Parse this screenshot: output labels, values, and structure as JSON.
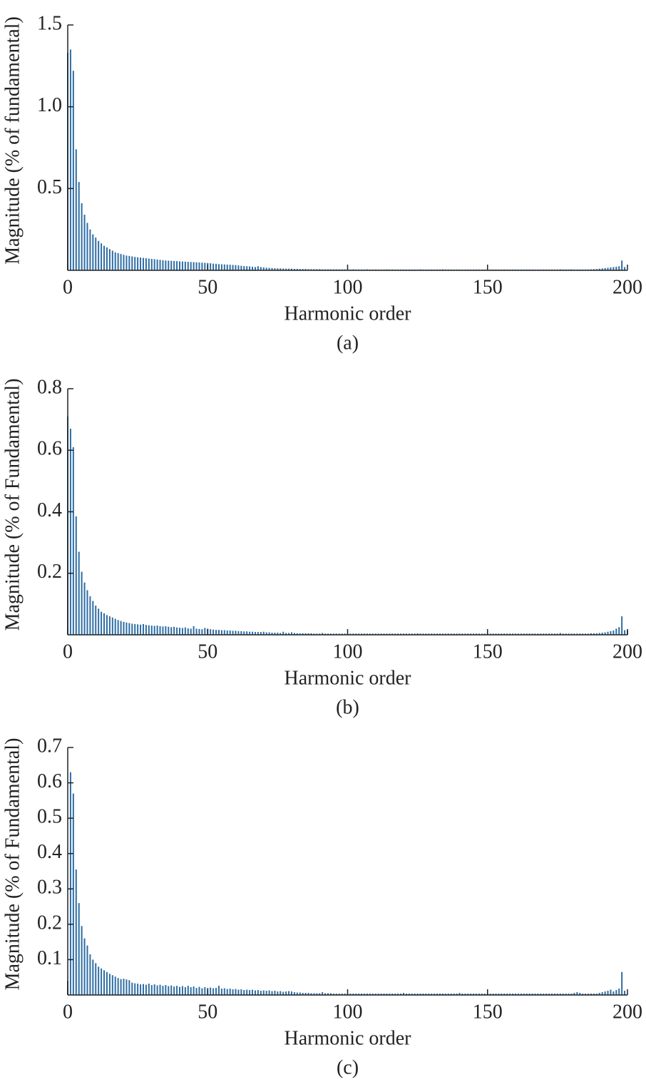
{
  "chart_data": [
    {
      "type": "bar",
      "caption": "(a)",
      "xlabel": "Harmonic order",
      "ylabel": "Magnitude (% of fundamental)",
      "color": "#2e6da4",
      "xlim": [
        0,
        200
      ],
      "xticks": [
        0,
        50,
        100,
        150,
        200
      ],
      "ylim": [
        0,
        1.5
      ],
      "yticks": [
        0.5,
        {
          "value": 1,
          "label": "1.0"
        },
        1.5
      ],
      "x": [
        0,
        1,
        2,
        3,
        4,
        5,
        6,
        7,
        8,
        9,
        10,
        11,
        12,
        13,
        14,
        15,
        16,
        17,
        18,
        19,
        20,
        21,
        22,
        23,
        24,
        25,
        26,
        27,
        28,
        29,
        30,
        31,
        32,
        33,
        34,
        35,
        36,
        37,
        38,
        39,
        40,
        41,
        42,
        43,
        44,
        45,
        46,
        47,
        48,
        49,
        50,
        51,
        52,
        53,
        54,
        55,
        56,
        57,
        58,
        59,
        60,
        61,
        62,
        63,
        64,
        65,
        66,
        67,
        68,
        69,
        70,
        71,
        72,
        73,
        74,
        75,
        76,
        77,
        78,
        79,
        80,
        81,
        82,
        83,
        84,
        85,
        86,
        87,
        88,
        89,
        90,
        91,
        92,
        93,
        94,
        95,
        96,
        97,
        98,
        99,
        100,
        101,
        102,
        103,
        104,
        105,
        106,
        107,
        108,
        109,
        110,
        111,
        112,
        113,
        114,
        115,
        116,
        117,
        118,
        119,
        120,
        121,
        122,
        123,
        124,
        125,
        126,
        127,
        128,
        129,
        130,
        131,
        132,
        133,
        134,
        135,
        136,
        137,
        138,
        139,
        140,
        141,
        142,
        143,
        144,
        145,
        146,
        147,
        148,
        149,
        150,
        151,
        152,
        153,
        154,
        155,
        156,
        157,
        158,
        159,
        160,
        161,
        162,
        163,
        164,
        165,
        166,
        167,
        168,
        169,
        170,
        171,
        172,
        173,
        174,
        175,
        176,
        177,
        178,
        179,
        180,
        181,
        182,
        183,
        184,
        185,
        186,
        187,
        188,
        189,
        190,
        191,
        192,
        193,
        194,
        195,
        196,
        197,
        198,
        199,
        200
      ],
      "values": [
        1.33,
        1.35,
        1.22,
        0.74,
        0.54,
        0.41,
        0.34,
        0.29,
        0.25,
        0.22,
        0.2,
        0.18,
        0.165,
        0.15,
        0.14,
        0.13,
        0.12,
        0.11,
        0.105,
        0.1,
        0.095,
        0.09,
        0.088,
        0.085,
        0.082,
        0.08,
        0.078,
        0.076,
        0.074,
        0.072,
        0.07,
        0.068,
        0.066,
        0.064,
        0.062,
        0.06,
        0.059,
        0.058,
        0.057,
        0.056,
        0.055,
        0.054,
        0.053,
        0.052,
        0.051,
        0.05,
        0.049,
        0.048,
        0.047,
        0.046,
        0.045,
        0.043,
        0.041,
        0.04,
        0.038,
        0.037,
        0.036,
        0.035,
        0.034,
        0.033,
        0.032,
        0.03,
        0.028,
        0.026,
        0.025,
        0.024,
        0.022,
        0.02,
        0.025,
        0.02,
        0.018,
        0.016,
        0.015,
        0.014,
        0.013,
        0.012,
        0.012,
        0.011,
        0.01,
        0.01,
        0.01,
        0.009,
        0.009,
        0.008,
        0.008,
        0.008,
        0.007,
        0.007,
        0.007,
        0.007,
        0.007,
        0.006,
        0.006,
        0.006,
        0.006,
        0.006,
        0.006,
        0.006,
        0.006,
        0.006,
        0.005,
        0.005,
        0.006,
        0.005,
        0.005,
        0.005,
        0.005,
        0.006,
        0.005,
        0.005,
        0.005,
        0.005,
        0.005,
        0.005,
        0.006,
        0.005,
        0.005,
        0.005,
        0.005,
        0.005,
        0.005,
        0.005,
        0.005,
        0.005,
        0.005,
        0.005,
        0.006,
        0.005,
        0.005,
        0.005,
        0.005,
        0.005,
        0.005,
        0.005,
        0.006,
        0.005,
        0.005,
        0.005,
        0.005,
        0.005,
        0.005,
        0.005,
        0.005,
        0.005,
        0.005,
        0.005,
        0.005,
        0.005,
        0.005,
        0.005,
        0.005,
        0.005,
        0.005,
        0.005,
        0.005,
        0.005,
        0.005,
        0.005,
        0.005,
        0.005,
        0.005,
        0.005,
        0.005,
        0.005,
        0.005,
        0.005,
        0.005,
        0.005,
        0.005,
        0.005,
        0.005,
        0.005,
        0.005,
        0.005,
        0.005,
        0.005,
        0.006,
        0.005,
        0.005,
        0.005,
        0.006,
        0.005,
        0.005,
        0.005,
        0.005,
        0.005,
        0.005,
        0.006,
        0.007,
        0.008,
        0.01,
        0.012,
        0.014,
        0.016,
        0.018,
        0.02,
        0.022,
        0.025,
        0.06,
        0.02,
        0
      ]
    },
    {
      "type": "bar",
      "caption": "(b)",
      "xlabel": "Harmonic order",
      "ylabel": "Magnitude (% of Fundamental)",
      "color": "#2e6da4",
      "xlim": [
        0,
        200
      ],
      "xticks": [
        0,
        50,
        100,
        150,
        200
      ],
      "ylim": [
        0,
        0.8
      ],
      "yticks": [
        0.2,
        0.4,
        0.6,
        0.8
      ],
      "x": [
        0,
        1,
        2,
        3,
        4,
        5,
        6,
        7,
        8,
        9,
        10,
        11,
        12,
        13,
        14,
        15,
        16,
        17,
        18,
        19,
        20,
        21,
        22,
        23,
        24,
        25,
        26,
        27,
        28,
        29,
        30,
        31,
        32,
        33,
        34,
        35,
        36,
        37,
        38,
        39,
        40,
        41,
        42,
        43,
        44,
        45,
        46,
        47,
        48,
        49,
        50,
        51,
        52,
        53,
        54,
        55,
        56,
        57,
        58,
        59,
        60,
        61,
        62,
        63,
        64,
        65,
        66,
        67,
        68,
        69,
        70,
        71,
        72,
        73,
        74,
        75,
        76,
        77,
        78,
        79,
        80,
        81,
        82,
        83,
        84,
        85,
        86,
        87,
        88,
        89,
        90,
        91,
        92,
        93,
        94,
        95,
        96,
        97,
        98,
        99,
        100,
        101,
        102,
        103,
        104,
        105,
        106,
        107,
        108,
        109,
        110,
        111,
        112,
        113,
        114,
        115,
        116,
        117,
        118,
        119,
        120,
        121,
        122,
        123,
        124,
        125,
        126,
        127,
        128,
        129,
        130,
        131,
        132,
        133,
        134,
        135,
        136,
        137,
        138,
        139,
        140,
        141,
        142,
        143,
        144,
        145,
        146,
        147,
        148,
        149,
        150,
        151,
        152,
        153,
        154,
        155,
        156,
        157,
        158,
        159,
        160,
        161,
        162,
        163,
        164,
        165,
        166,
        167,
        168,
        169,
        170,
        171,
        172,
        173,
        174,
        175,
        176,
        177,
        178,
        179,
        180,
        181,
        182,
        183,
        184,
        185,
        186,
        187,
        188,
        189,
        190,
        191,
        192,
        193,
        194,
        195,
        196,
        197,
        198,
        199,
        200
      ],
      "values": [
        0.71,
        0.67,
        0.61,
        0.385,
        0.27,
        0.205,
        0.17,
        0.145,
        0.125,
        0.11,
        0.095,
        0.085,
        0.075,
        0.07,
        0.064,
        0.06,
        0.056,
        0.052,
        0.048,
        0.045,
        0.042,
        0.04,
        0.038,
        0.036,
        0.035,
        0.034,
        0.033,
        0.035,
        0.032,
        0.031,
        0.03,
        0.029,
        0.03,
        0.028,
        0.027,
        0.028,
        0.026,
        0.025,
        0.026,
        0.024,
        0.023,
        0.022,
        0.024,
        0.021,
        0.02,
        0.028,
        0.02,
        0.019,
        0.018,
        0.022,
        0.02,
        0.018,
        0.017,
        0.016,
        0.016,
        0.015,
        0.015,
        0.014,
        0.014,
        0.013,
        0.013,
        0.012,
        0.012,
        0.011,
        0.011,
        0.01,
        0.01,
        0.009,
        0.009,
        0.009,
        0.01,
        0.008,
        0.008,
        0.007,
        0.007,
        0.007,
        0.006,
        0.01,
        0.006,
        0.006,
        0.008,
        0.006,
        0.005,
        0.005,
        0.005,
        0.005,
        0.005,
        0.005,
        0.004,
        0.004,
        0.004,
        0.006,
        0.004,
        0.004,
        0.004,
        0.004,
        0.004,
        0.004,
        0.004,
        0.004,
        0.004,
        0.004,
        0.004,
        0.004,
        0.004,
        0.004,
        0.004,
        0.004,
        0.004,
        0.004,
        0.004,
        0.004,
        0.004,
        0.004,
        0.004,
        0.004,
        0.004,
        0.004,
        0.004,
        0.004,
        0.004,
        0.004,
        0.004,
        0.004,
        0.004,
        0.005,
        0.004,
        0.004,
        0.004,
        0.004,
        0.004,
        0.004,
        0.004,
        0.004,
        0.004,
        0.004,
        0.004,
        0.004,
        0.004,
        0.004,
        0.004,
        0.004,
        0.004,
        0.004,
        0.004,
        0.004,
        0.004,
        0.004,
        0.004,
        0.004,
        0.004,
        0.004,
        0.004,
        0.004,
        0.004,
        0.004,
        0.004,
        0.004,
        0.004,
        0.004,
        0.004,
        0.004,
        0.004,
        0.004,
        0.004,
        0.004,
        0.004,
        0.004,
        0.004,
        0.004,
        0.004,
        0.004,
        0.004,
        0.004,
        0.004,
        0.004,
        0.006,
        0.004,
        0.004,
        0.004,
        0.004,
        0.004,
        0.004,
        0.004,
        0.004,
        0.004,
        0.004,
        0.005,
        0.005,
        0.005,
        0.006,
        0.007,
        0.008,
        0.01,
        0.012,
        0.014,
        0.02,
        0.025,
        0.06,
        0.015,
        0.015
      ]
    },
    {
      "type": "bar",
      "caption": "(c)",
      "xlabel": "Harmonic order",
      "ylabel": "Magnitude (% of Fundamental)",
      "color": "#2e6da4",
      "xlim": [
        0,
        200
      ],
      "xticks": [
        0,
        50,
        100,
        150,
        200
      ],
      "ylim": [
        0,
        0.7
      ],
      "yticks": [
        0.1,
        0.2,
        0.3,
        0.4,
        0.5,
        0.6,
        0.7
      ],
      "x": [
        0,
        1,
        2,
        3,
        4,
        5,
        6,
        7,
        8,
        9,
        10,
        11,
        12,
        13,
        14,
        15,
        16,
        17,
        18,
        19,
        20,
        21,
        22,
        23,
        24,
        25,
        26,
        27,
        28,
        29,
        30,
        31,
        32,
        33,
        34,
        35,
        36,
        37,
        38,
        39,
        40,
        41,
        42,
        43,
        44,
        45,
        46,
        47,
        48,
        49,
        50,
        51,
        52,
        53,
        54,
        55,
        56,
        57,
        58,
        59,
        60,
        61,
        62,
        63,
        64,
        65,
        66,
        67,
        68,
        69,
        70,
        71,
        72,
        73,
        74,
        75,
        76,
        77,
        78,
        79,
        80,
        81,
        82,
        83,
        84,
        85,
        86,
        87,
        88,
        89,
        90,
        91,
        92,
        93,
        94,
        95,
        96,
        97,
        98,
        99,
        100,
        101,
        102,
        103,
        104,
        105,
        106,
        107,
        108,
        109,
        110,
        111,
        112,
        113,
        114,
        115,
        116,
        117,
        118,
        119,
        120,
        121,
        122,
        123,
        124,
        125,
        126,
        127,
        128,
        129,
        130,
        131,
        132,
        133,
        134,
        135,
        136,
        137,
        138,
        139,
        140,
        141,
        142,
        143,
        144,
        145,
        146,
        147,
        148,
        149,
        150,
        151,
        152,
        153,
        154,
        155,
        156,
        157,
        158,
        159,
        160,
        161,
        162,
        163,
        164,
        165,
        166,
        167,
        168,
        169,
        170,
        171,
        172,
        173,
        174,
        175,
        176,
        177,
        178,
        179,
        180,
        181,
        182,
        183,
        184,
        185,
        186,
        187,
        188,
        189,
        190,
        191,
        192,
        193,
        194,
        195,
        196,
        197,
        198,
        199,
        200
      ],
      "values": [
        0.04,
        0.63,
        0.57,
        0.355,
        0.26,
        0.195,
        0.16,
        0.14,
        0.115,
        0.1,
        0.09,
        0.08,
        0.075,
        0.07,
        0.065,
        0.06,
        0.056,
        0.052,
        0.048,
        0.045,
        0.046,
        0.044,
        0.042,
        0.035,
        0.033,
        0.032,
        0.03,
        0.031,
        0.029,
        0.032,
        0.028,
        0.03,
        0.027,
        0.029,
        0.026,
        0.028,
        0.025,
        0.027,
        0.024,
        0.026,
        0.023,
        0.025,
        0.022,
        0.026,
        0.022,
        0.024,
        0.02,
        0.023,
        0.019,
        0.022,
        0.02,
        0.021,
        0.019,
        0.02,
        0.026,
        0.018,
        0.019,
        0.017,
        0.018,
        0.016,
        0.017,
        0.015,
        0.016,
        0.014,
        0.015,
        0.014,
        0.015,
        0.013,
        0.014,
        0.012,
        0.013,
        0.012,
        0.013,
        0.011,
        0.012,
        0.01,
        0.011,
        0.009,
        0.01,
        0.011,
        0.01,
        0.008,
        0.007,
        0.007,
        0.006,
        0.006,
        0.006,
        0.005,
        0.005,
        0.005,
        0.005,
        0.008,
        0.005,
        0.005,
        0.005,
        0.004,
        0.004,
        0.004,
        0.004,
        0.004,
        0.004,
        0.004,
        0.004,
        0.004,
        0.004,
        0.004,
        0.004,
        0.004,
        0.004,
        0.004,
        0.004,
        0.004,
        0.004,
        0.004,
        0.004,
        0.004,
        0.004,
        0.004,
        0.004,
        0.004,
        0.006,
        0.004,
        0.004,
        0.004,
        0.004,
        0.004,
        0.004,
        0.004,
        0.004,
        0.004,
        0.004,
        0.004,
        0.004,
        0.004,
        0.004,
        0.004,
        0.004,
        0.004,
        0.004,
        0.004,
        0.006,
        0.004,
        0.004,
        0.004,
        0.004,
        0.004,
        0.004,
        0.004,
        0.004,
        0.004,
        0.004,
        0.004,
        0.004,
        0.004,
        0.004,
        0.004,
        0.004,
        0.004,
        0.004,
        0.004,
        0.004,
        0.004,
        0.004,
        0.004,
        0.004,
        0.004,
        0.004,
        0.004,
        0.004,
        0.004,
        0.004,
        0.004,
        0.004,
        0.004,
        0.004,
        0.004,
        0.004,
        0.004,
        0.004,
        0.004,
        0.004,
        0.006,
        0.008,
        0.006,
        0.004,
        0.004,
        0.004,
        0.004,
        0.004,
        0.004,
        0.006,
        0.008,
        0.01,
        0.012,
        0.015,
        0.01,
        0.014,
        0.018,
        0.065,
        0.012,
        0
      ]
    }
  ]
}
